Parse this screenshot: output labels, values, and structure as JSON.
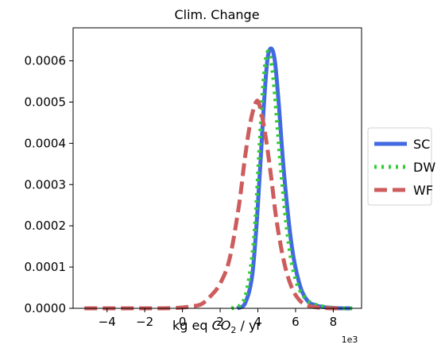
{
  "chart_data": {
    "type": "line",
    "title": "Clim. Change",
    "xlabel_prefix": "kg eq ",
    "xlabel_math": "CO",
    "xlabel_sub": "2",
    "xlabel_suffix": " / yr",
    "x_offset_label": "1e3",
    "xlim": [
      -5.8,
      9.5
    ],
    "ylim": [
      0,
      0.00068
    ],
    "xticks": [
      -4,
      -2,
      0,
      2,
      4,
      6,
      8
    ],
    "xtick_labels": [
      "−4",
      "−2",
      "0",
      "2",
      "4",
      "6",
      "8"
    ],
    "yticks": [
      0,
      0.0001,
      0.0002,
      0.0003,
      0.0004,
      0.0005,
      0.0006
    ],
    "ytick_labels": [
      "0.0000",
      "0.0001",
      "0.0002",
      "0.0003",
      "0.0004",
      "0.0005",
      "0.0006"
    ],
    "grid": false,
    "legend_position": "outside-right",
    "series": [
      {
        "name": "SC",
        "color": "#4169e1",
        "style": "solid",
        "x": [
          2.9,
          3.3,
          3.7,
          4.0,
          4.3,
          4.5,
          4.7,
          4.9,
          5.1,
          5.4,
          5.8,
          6.2,
          6.6,
          7.0,
          7.5,
          8.0,
          8.5,
          9.0
        ],
        "y": [
          0,
          1e-05,
          8e-05,
          0.00025,
          0.00048,
          0.0006,
          0.00063,
          0.0006,
          0.0005,
          0.00032,
          0.00015,
          6e-05,
          2e-05,
          8e-06,
          3e-06,
          1e-06,
          0,
          0
        ]
      },
      {
        "name": "DW",
        "color": "#33cc33",
        "style": "dotted",
        "x": [
          2.6,
          3.0,
          3.4,
          3.8,
          4.1,
          4.3,
          4.5,
          4.7,
          4.9,
          5.2,
          5.6,
          6.0,
          6.5,
          7.0,
          7.5,
          8.0,
          8.5,
          9.0
        ],
        "y": [
          0,
          5e-06,
          4e-05,
          0.00017,
          0.0004,
          0.00055,
          0.00062,
          0.0006,
          0.00052,
          0.00035,
          0.00017,
          7e-05,
          2.5e-05,
          1e-05,
          4e-06,
          1e-06,
          0,
          0
        ]
      },
      {
        "name": "WF",
        "color": "#cd5c5c",
        "style": "dashed",
        "x": [
          -5.2,
          -4.0,
          -3.0,
          -2.0,
          -1.0,
          0.0,
          0.5,
          1.0,
          1.5,
          2.0,
          2.5,
          3.0,
          3.3,
          3.6,
          3.9,
          4.1,
          4.4,
          4.7,
          5.0,
          5.4,
          5.8,
          6.2,
          6.6,
          7.0,
          7.5,
          8.0,
          8.5
        ],
        "y": [
          0,
          0,
          0,
          0,
          0,
          2e-06,
          5e-06,
          1e-05,
          3e-05,
          6e-05,
          0.00012,
          0.00025,
          0.00036,
          0.00045,
          0.0005,
          0.00049,
          0.00042,
          0.00032,
          0.00021,
          0.00011,
          5e-05,
          2e-05,
          8e-06,
          3e-06,
          1e-06,
          0,
          0
        ]
      }
    ]
  }
}
